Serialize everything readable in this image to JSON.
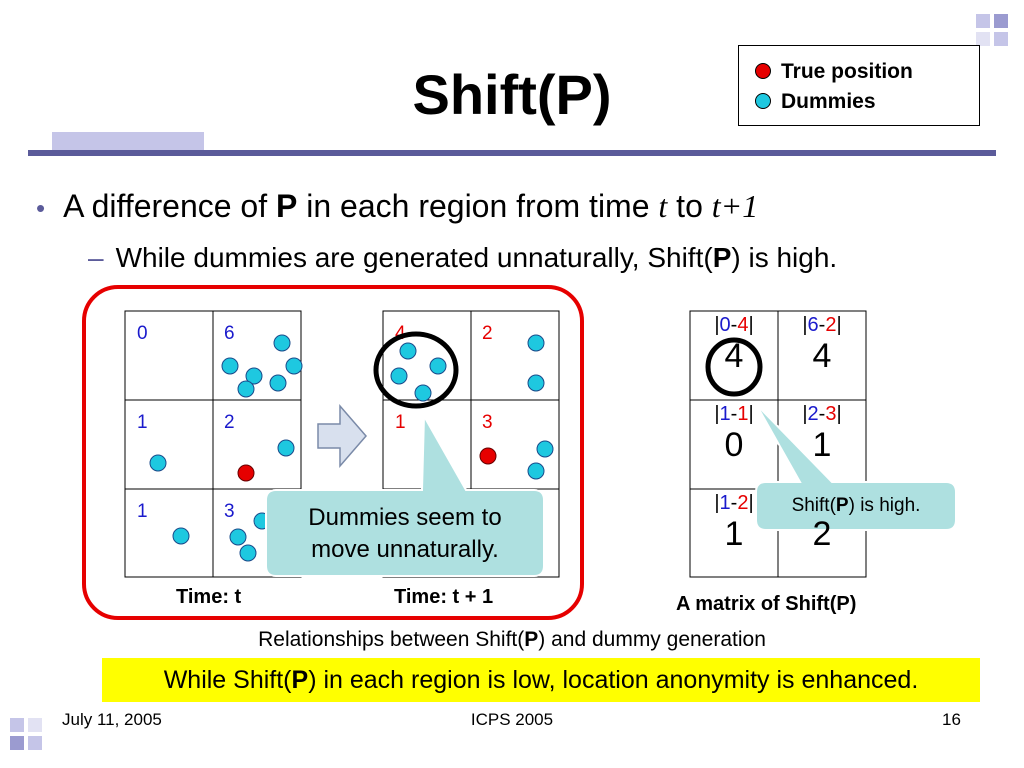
{
  "slide": {
    "title": "Shift(P)",
    "legend": {
      "true_position": "True position",
      "dummies": "Dummies",
      "colors": {
        "true_position": "#e60000",
        "dummies": "#1ec8e0"
      }
    },
    "bullet": {
      "pre": "A difference of ",
      "bold": "P",
      "mid": " in each region from time ",
      "t": "t",
      "to": " to ",
      "t1": "t+1"
    },
    "sub_bullet": {
      "pre": "While dummies are generated unnaturally, Shift(",
      "bold": "P",
      "post": ") is high."
    }
  },
  "diagram": {
    "grid_t": {
      "labels": [
        "0",
        "6",
        "1",
        "2",
        "1",
        "3"
      ],
      "caption": "Time: t"
    },
    "grid_t1": {
      "labels": [
        "4",
        "2",
        "1",
        "3"
      ],
      "caption": "Time: t + 1"
    },
    "callout_left": "Dummies seem to move unnaturally.",
    "matrix": {
      "caption": "A matrix of Shift(P)",
      "cells": [
        {
          "a": "0",
          "b": "4",
          "value": "4"
        },
        {
          "a": "6",
          "b": "2",
          "value": "4"
        },
        {
          "a": "1",
          "b": "1",
          "value": "0"
        },
        {
          "a": "2",
          "b": "3",
          "value": "1"
        },
        {
          "a": "1",
          "b": "2",
          "value": "1"
        },
        {
          "a": "",
          "b": "",
          "value": "2"
        }
      ]
    },
    "callout_right": {
      "pre": "Shift(",
      "bold": "P",
      "post": ") is high."
    }
  },
  "caption": {
    "pre": "Relationships between Shift(",
    "bold": "P",
    "post": ") and dummy generation"
  },
  "highlight": {
    "pre": "While Shift(",
    "bold": "P",
    "post": ") in each region is low, location anonymity is enhanced."
  },
  "footer": {
    "date": "July 11, 2005",
    "venue": "ICPS 2005",
    "page": "16"
  }
}
